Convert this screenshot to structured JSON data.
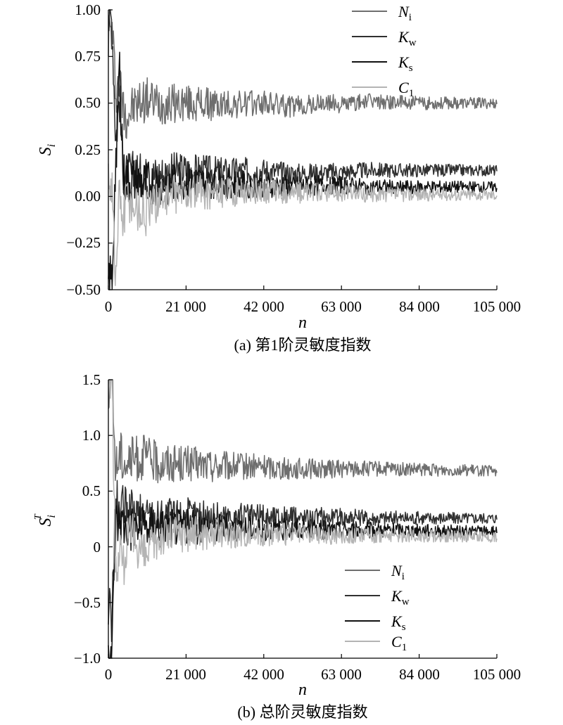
{
  "charts": [
    {
      "id": "a",
      "caption": "(a) 第1阶灵敏度指数",
      "ylabel_main": "S",
      "ylabel_sub": "i",
      "ylabel_sup": "",
      "xlabel": "n",
      "yticks": [
        "1.00",
        "0.75",
        "0.50",
        "0.25",
        "0.00",
        "−0.25",
        "−0.50"
      ],
      "xticks": [
        "0",
        "21 000",
        "42 000",
        "63 000",
        "84 000",
        "105 000"
      ],
      "legend_position": "top-right"
    },
    {
      "id": "b",
      "caption": "(b) 总阶灵敏度指数",
      "ylabel_main": "S",
      "ylabel_sub": "i",
      "ylabel_sup": "T",
      "xlabel": "n",
      "yticks": [
        "1.5",
        "1.0",
        "0.5",
        "0",
        "−0.5",
        "−1.0"
      ],
      "xticks": [
        "0",
        "21 000",
        "42 000",
        "63 000",
        "84 000",
        "105 000"
      ],
      "legend_position": "bottom-right"
    }
  ],
  "legend": [
    {
      "main": "N",
      "sub": "i",
      "color": "#6e6e6e"
    },
    {
      "main": "K",
      "sub": "w",
      "color": "#303030"
    },
    {
      "main": "K",
      "sub": "s",
      "color": "#111111"
    },
    {
      "main": "C",
      "sub": "1",
      "color": "#b4b4b4"
    }
  ],
  "chart_data": [
    {
      "type": "line",
      "title": "(a) 第1阶灵敏度指数",
      "xlabel": "n",
      "ylabel": "Si",
      "xlim": [
        0,
        105000
      ],
      "ylim": [
        -0.5,
        1.0
      ],
      "grid": false,
      "legend_position": "top-right",
      "series": [
        {
          "name": "Ni",
          "color": "#6e6e6e",
          "x": [
            1000,
            2000,
            3000,
            4000,
            5000,
            7000,
            10000,
            14000,
            20000,
            30000,
            42000,
            50000,
            60000,
            63000,
            70000,
            84000,
            95000,
            105000
          ],
          "values": [
            0.88,
            0.58,
            0.62,
            0.47,
            0.44,
            0.48,
            0.52,
            0.5,
            0.5,
            0.49,
            0.5,
            0.48,
            0.5,
            0.49,
            0.51,
            0.5,
            0.5,
            0.5
          ]
        },
        {
          "name": "Kw",
          "color": "#303030",
          "x": [
            1000,
            2000,
            3000,
            4000,
            5000,
            7000,
            10000,
            14000,
            20000,
            30000,
            42000,
            50000,
            60000,
            63000,
            70000,
            84000,
            95000,
            105000
          ],
          "values": [
            0.95,
            0.3,
            0.55,
            0.15,
            0.1,
            0.12,
            0.1,
            0.12,
            0.14,
            0.13,
            0.14,
            0.12,
            0.13,
            0.13,
            0.14,
            0.14,
            0.14,
            0.14
          ]
        },
        {
          "name": "Ks",
          "color": "#111111",
          "x": [
            1000,
            2000,
            3000,
            4000,
            5000,
            7000,
            10000,
            14000,
            20000,
            30000,
            42000,
            50000,
            60000,
            63000,
            70000,
            84000,
            95000,
            105000
          ],
          "values": [
            -0.45,
            0.2,
            0.7,
            0.1,
            0.08,
            0.08,
            0.07,
            0.06,
            0.08,
            0.07,
            0.06,
            0.05,
            0.06,
            0.06,
            0.05,
            0.05,
            0.05,
            0.05
          ]
        },
        {
          "name": "C1",
          "color": "#b4b4b4",
          "x": [
            1000,
            2000,
            3000,
            4000,
            5000,
            7000,
            10000,
            14000,
            20000,
            30000,
            42000,
            50000,
            60000,
            63000,
            70000,
            84000,
            95000,
            105000
          ],
          "values": [
            0.1,
            -0.48,
            0.05,
            -0.15,
            0.02,
            -0.05,
            -0.1,
            0.0,
            0.02,
            0.02,
            0.03,
            0.02,
            0.02,
            0.02,
            0.01,
            0.01,
            0.01,
            0.01
          ]
        }
      ]
    },
    {
      "type": "line",
      "title": "(b) 总阶灵敏度指数",
      "xlabel": "n",
      "ylabel": "SiT",
      "xlim": [
        0,
        105000
      ],
      "ylim": [
        -1.0,
        1.5
      ],
      "grid": false,
      "legend_position": "bottom-right",
      "series": [
        {
          "name": "Ni",
          "color": "#6e6e6e",
          "x": [
            1000,
            2000,
            3000,
            4000,
            5000,
            7000,
            10000,
            14000,
            20000,
            30000,
            42000,
            50000,
            60000,
            63000,
            70000,
            84000,
            95000,
            105000
          ],
          "values": [
            1.45,
            0.7,
            0.85,
            0.8,
            0.75,
            0.78,
            0.8,
            0.76,
            0.75,
            0.72,
            0.72,
            0.7,
            0.7,
            0.7,
            0.7,
            0.69,
            0.69,
            0.68
          ]
        },
        {
          "name": "Kw",
          "color": "#303030",
          "x": [
            1000,
            2000,
            3000,
            4000,
            5000,
            7000,
            10000,
            14000,
            20000,
            30000,
            42000,
            50000,
            60000,
            63000,
            70000,
            84000,
            95000,
            105000
          ],
          "values": [
            -0.6,
            0.4,
            0.3,
            0.35,
            0.3,
            0.28,
            0.28,
            0.27,
            0.28,
            0.27,
            0.27,
            0.26,
            0.27,
            0.27,
            0.26,
            0.26,
            0.26,
            0.26
          ]
        },
        {
          "name": "Ks",
          "color": "#111111",
          "x": [
            1000,
            2000,
            3000,
            4000,
            5000,
            7000,
            10000,
            14000,
            20000,
            30000,
            42000,
            50000,
            60000,
            63000,
            70000,
            84000,
            95000,
            105000
          ],
          "values": [
            -0.9,
            0.2,
            0.25,
            0.2,
            0.18,
            0.17,
            0.18,
            0.17,
            0.18,
            0.17,
            0.16,
            0.16,
            0.15,
            0.15,
            0.15,
            0.15,
            0.14,
            0.14
          ]
        },
        {
          "name": "C1",
          "color": "#b4b4b4",
          "x": [
            1000,
            2000,
            3000,
            4000,
            5000,
            7000,
            10000,
            14000,
            20000,
            30000,
            42000,
            50000,
            60000,
            63000,
            70000,
            84000,
            95000,
            105000
          ],
          "values": [
            1.5,
            -0.3,
            0.1,
            -0.2,
            0.05,
            0.08,
            -0.1,
            0.1,
            0.12,
            0.12,
            0.12,
            0.11,
            0.1,
            0.1,
            0.1,
            0.1,
            0.09,
            0.09
          ]
        }
      ]
    }
  ]
}
